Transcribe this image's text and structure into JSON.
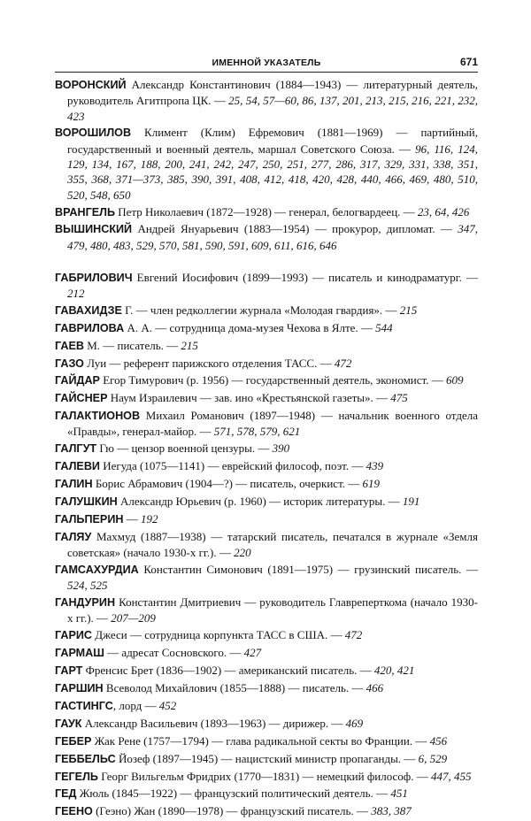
{
  "header": {
    "title": "ИМЕННОЙ УКАЗАТЕЛЬ",
    "page_number": "671"
  },
  "sections": [
    {
      "entries": [
        {
          "name": "ВОРОНСКИЙ",
          "text": " Александр Константинович (1884—1943) — литературный деятель, руководитель Агитпропа ЦК. — ",
          "pages": "25, 54, 57—60, 86, 137, 201, 213, 215, 216, 221, 232, 423"
        },
        {
          "name": "ВОРОШИЛОВ",
          "text": " Климент (Клим) Ефремович (1881—1969) — партийный, государственный и военный деятель, маршал Советского Союза. — ",
          "pages": "96, 116, 124, 129, 134, 167, 188, 200, 241, 242, 247, 250, 251, 277, 286, 317, 329, 331, 338, 351, 355, 368, 371—373, 385, 390, 391, 408, 412, 418, 420, 428, 440, 466, 469, 480, 510, 520, 548, 650"
        },
        {
          "name": "ВРАНГЕЛЬ",
          "text": " Петр Николаевич (1872—1928) — генерал, белогвардеец. — ",
          "pages": "23, 64, 426"
        },
        {
          "name": "ВЫШИНСКИЙ",
          "text": " Андрей Януарьевич (1883—1954) — прокурор, дипломат. — ",
          "pages": "347, 479, 480, 483, 529, 570, 581, 590, 591, 609, 611, 616, 646"
        }
      ]
    },
    {
      "entries": [
        {
          "name": "ГАБРИЛОВИЧ",
          "text": " Евгений Иосифович (1899—1993) — писатель и кинодраматург. — ",
          "pages": "212"
        },
        {
          "name": "ГАВАХИДЗЕ",
          "text": " Г. — член редколлегии журнала «Молодая гвардия». — ",
          "pages": "215"
        },
        {
          "name": "ГАВРИЛОВА",
          "text": " А. А. — сотрудница дома-музея Чехова в Ялте. — ",
          "pages": "544"
        },
        {
          "name": "ГАЕВ",
          "text": " М. — писатель. — ",
          "pages": "215"
        },
        {
          "name": "ГАЗО",
          "text": " Луи — референт парижского отделения ТАСС. — ",
          "pages": "472"
        },
        {
          "name": "ГАЙДАР",
          "text": " Егор Тимурович (р. 1956) — государственный деятель, экономист. — ",
          "pages": "609"
        },
        {
          "name": "ГАЙСНЕР",
          "text": " Наум Израилевич — зав. ино «Крестьянской газеты». — ",
          "pages": "475"
        },
        {
          "name": "ГАЛАКТИОНОВ",
          "text": " Михаил Романович (1897—1948) — начальник военного отдела «Правды», генерал-майор. — ",
          "pages": "571, 578, 579, 621"
        },
        {
          "name": "ГАЛГУТ",
          "text": " Гю — цензор военной цензуры. — ",
          "pages": "390"
        },
        {
          "name": "ГАЛЕВИ",
          "text": " Иегуда (1075—1141) — еврейский философ, поэт. — ",
          "pages": "439"
        },
        {
          "name": "ГАЛИН",
          "text": " Борис Абрамович (1904—?) — писатель, очеркист. — ",
          "pages": "619"
        },
        {
          "name": "ГАЛУШКИН",
          "text": " Александр Юрьевич (р. 1960) — историк литературы. — ",
          "pages": "191"
        },
        {
          "name": "ГАЛЬПЕРИН",
          "text": " — ",
          "pages": "192"
        },
        {
          "name": "ГАЛЯУ",
          "text": " Махмуд (1887—1938) — татарский писатель, печатался в журнале «Земля советская» (начало 1930-х гг.). — ",
          "pages": "220"
        },
        {
          "name": "ГАМСАХУРДИА",
          "text": " Константин Симонович (1891—1975) — грузинский писатель. — ",
          "pages": "524, 525"
        },
        {
          "name": "ГАНДУРИН",
          "text": " Константин Дмитриевич — руководитель Главреперткома (начало 1930-х гг.). — ",
          "pages": "207—209"
        },
        {
          "name": "ГАРИС",
          "text": " Джеси — сотрудница корпункта ТАСС в США. — ",
          "pages": "472"
        },
        {
          "name": "ГАРМАШ",
          "text": " — адресат Сосновского. — ",
          "pages": "427"
        },
        {
          "name": "ГАРТ",
          "text": " Френсис Брет (1836—1902) — американский писатель. — ",
          "pages": "420, 421"
        },
        {
          "name": "ГАРШИН",
          "text": " Всеволод Михайлович (1855—1888) — писатель. — ",
          "pages": "466"
        },
        {
          "name": "ГАСТИНГС",
          "text": ", лорд — ",
          "pages": "452"
        },
        {
          "name": "ГАУК",
          "text": " Александр Васильевич (1893—1963) — дирижер. — ",
          "pages": "469"
        },
        {
          "name": "ГЕБЕР",
          "text": " Жак Рене (1757—1794) — глава радикальной секты во Франции. — ",
          "pages": "456"
        },
        {
          "name": "ГЕББЕЛЬС",
          "text": " Йозеф (1897—1945) — нацистский министр пропаганды. — ",
          "pages": "6, 529"
        },
        {
          "name": "ГЕГЕЛЬ",
          "text": " Георг Вильгельм Фридрих (1770—1831) — немецкий философ. — ",
          "pages": "447, 455"
        },
        {
          "name": "ГЕД",
          "text": " Жюль (1845—1922) — французский политический деятель. — ",
          "pages": "451"
        },
        {
          "name": "ГЕЕНО",
          "text": " (Геэно) Жан (1890—1978) — французский писатель. — ",
          "pages": "383, 387"
        }
      ]
    }
  ]
}
